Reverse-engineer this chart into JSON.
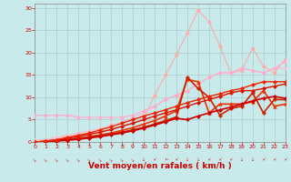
{
  "background_color": "#c8eaea",
  "grid_color": "#aacccc",
  "xlabel": "Vent moyen/en rafales ( km/h )",
  "xlabel_color": "#cc0000",
  "xlabel_fontsize": 6.5,
  "tick_color": "#cc0000",
  "tick_fontsize": 4.5,
  "ylim": [
    0,
    31
  ],
  "xlim": [
    0,
    23
  ],
  "xticks": [
    0,
    1,
    2,
    3,
    4,
    5,
    6,
    7,
    8,
    9,
    10,
    11,
    12,
    13,
    14,
    15,
    16,
    17,
    18,
    19,
    20,
    21,
    22,
    23
  ],
  "yticks": [
    0,
    5,
    10,
    15,
    20,
    25,
    30
  ],
  "series": [
    {
      "x": [
        0,
        1,
        2,
        3,
        4,
        5,
        6,
        7,
        8,
        9,
        10,
        11,
        12,
        13,
        14,
        15,
        16,
        17,
        18,
        19,
        20,
        21,
        22,
        23
      ],
      "y": [
        0.5,
        0.5,
        1.0,
        1.2,
        1.5,
        1.8,
        2.2,
        2.8,
        3.5,
        4.2,
        5.0,
        10.5,
        15.0,
        19.5,
        24.5,
        29.5,
        27.0,
        21.5,
        15.5,
        16.0,
        21.0,
        17.0,
        15.5,
        18.5
      ],
      "color": "#ffaaaa",
      "lw": 0.8,
      "marker": "D",
      "ms": 2.0
    },
    {
      "x": [
        0,
        1,
        2,
        3,
        4,
        5,
        6,
        7,
        8,
        9,
        10,
        11,
        12,
        13,
        14,
        15,
        16,
        17,
        18,
        19,
        20,
        21,
        22,
        23
      ],
      "y": [
        0.5,
        0.5,
        1.0,
        1.5,
        2.0,
        2.5,
        3.0,
        3.8,
        4.5,
        5.5,
        6.5,
        8.0,
        9.5,
        10.5,
        11.5,
        13.0,
        14.5,
        15.5,
        15.5,
        16.5,
        16.0,
        15.5,
        16.5,
        16.5
      ],
      "color": "#ffbbcc",
      "lw": 0.8,
      "marker": "D",
      "ms": 2.0
    },
    {
      "x": [
        0,
        1,
        2,
        3,
        4,
        5,
        6,
        7,
        8,
        9,
        10,
        11,
        12,
        13,
        14,
        15,
        16,
        17,
        18,
        19,
        20,
        21,
        22,
        23
      ],
      "y": [
        6.0,
        6.0,
        6.0,
        6.0,
        5.5,
        5.5,
        5.5,
        5.5,
        5.5,
        6.0,
        7.0,
        8.0,
        9.5,
        10.5,
        11.5,
        13.0,
        14.5,
        15.5,
        15.5,
        16.5,
        16.0,
        15.5,
        16.5,
        18.0
      ],
      "color": "#ffaacc",
      "lw": 0.8,
      "marker": "D",
      "ms": 2.0
    },
    {
      "x": [
        0,
        1,
        2,
        3,
        4,
        5,
        6,
        7,
        8,
        9,
        10,
        11,
        12,
        13,
        14,
        15,
        16,
        17,
        18,
        19,
        20,
        21,
        22,
        23
      ],
      "y": [
        0.0,
        0.0,
        0.3,
        0.5,
        0.8,
        1.2,
        1.6,
        2.0,
        2.6,
        3.2,
        4.0,
        4.8,
        5.8,
        7.0,
        14.0,
        13.5,
        6.5,
        8.5,
        8.5,
        8.5,
        9.0,
        11.5,
        8.0,
        8.5
      ],
      "color": "#ee3300",
      "lw": 1.2,
      "marker": "^",
      "ms": 2.5
    },
    {
      "x": [
        0,
        1,
        2,
        3,
        4,
        5,
        6,
        7,
        8,
        9,
        10,
        11,
        12,
        13,
        14,
        15,
        16,
        17,
        18,
        19,
        20,
        21,
        22,
        23
      ],
      "y": [
        0.0,
        0.0,
        0.3,
        0.5,
        0.8,
        1.1,
        1.4,
        1.8,
        2.2,
        2.7,
        3.3,
        4.0,
        4.8,
        5.6,
        14.5,
        12.0,
        10.0,
        6.0,
        7.5,
        8.0,
        11.0,
        6.5,
        9.5,
        9.5
      ],
      "color": "#cc2200",
      "lw": 1.2,
      "marker": "P",
      "ms": 2.5
    },
    {
      "x": [
        0,
        1,
        2,
        3,
        4,
        5,
        6,
        7,
        8,
        9,
        10,
        11,
        12,
        13,
        14,
        15,
        16,
        17,
        18,
        19,
        20,
        21,
        22,
        23
      ],
      "y": [
        0.0,
        0.0,
        0.2,
        0.4,
        0.6,
        0.9,
        1.2,
        1.6,
        2.0,
        2.5,
        3.1,
        3.8,
        4.5,
        5.3,
        5.0,
        5.8,
        6.5,
        7.2,
        7.8,
        8.5,
        9.2,
        9.8,
        10.2,
        9.8
      ],
      "color": "#cc0000",
      "lw": 1.2,
      "marker": "D",
      "ms": 2.0
    },
    {
      "x": [
        0,
        1,
        2,
        3,
        4,
        5,
        6,
        7,
        8,
        9,
        10,
        11,
        12,
        13,
        14,
        15,
        16,
        17,
        18,
        19,
        20,
        21,
        22,
        23
      ],
      "y": [
        0.0,
        0.2,
        0.5,
        0.8,
        1.2,
        1.7,
        2.2,
        2.8,
        3.5,
        4.2,
        5.0,
        5.8,
        6.5,
        7.2,
        8.0,
        8.8,
        9.5,
        10.2,
        11.0,
        11.5,
        11.5,
        12.0,
        12.5,
        13.0
      ],
      "color": "#dd1100",
      "lw": 1.0,
      "marker": "D",
      "ms": 2.0
    },
    {
      "x": [
        0,
        1,
        2,
        3,
        4,
        5,
        6,
        7,
        8,
        9,
        10,
        11,
        12,
        13,
        14,
        15,
        16,
        17,
        18,
        19,
        20,
        21,
        22,
        23
      ],
      "y": [
        0.0,
        0.2,
        0.5,
        1.0,
        1.5,
        2.0,
        2.7,
        3.4,
        4.2,
        5.0,
        5.8,
        6.5,
        7.2,
        8.0,
        8.8,
        9.5,
        10.2,
        10.8,
        11.5,
        12.0,
        12.8,
        13.5,
        13.5,
        13.5
      ],
      "color": "#ee2200",
      "lw": 1.0,
      "marker": "D",
      "ms": 2.0
    }
  ],
  "wind_arrow_angles": [
    225,
    225,
    225,
    225,
    225,
    225,
    225,
    225,
    225,
    225,
    270,
    315,
    0,
    315,
    270,
    270,
    315,
    315,
    315,
    270,
    270,
    315,
    315,
    315
  ]
}
